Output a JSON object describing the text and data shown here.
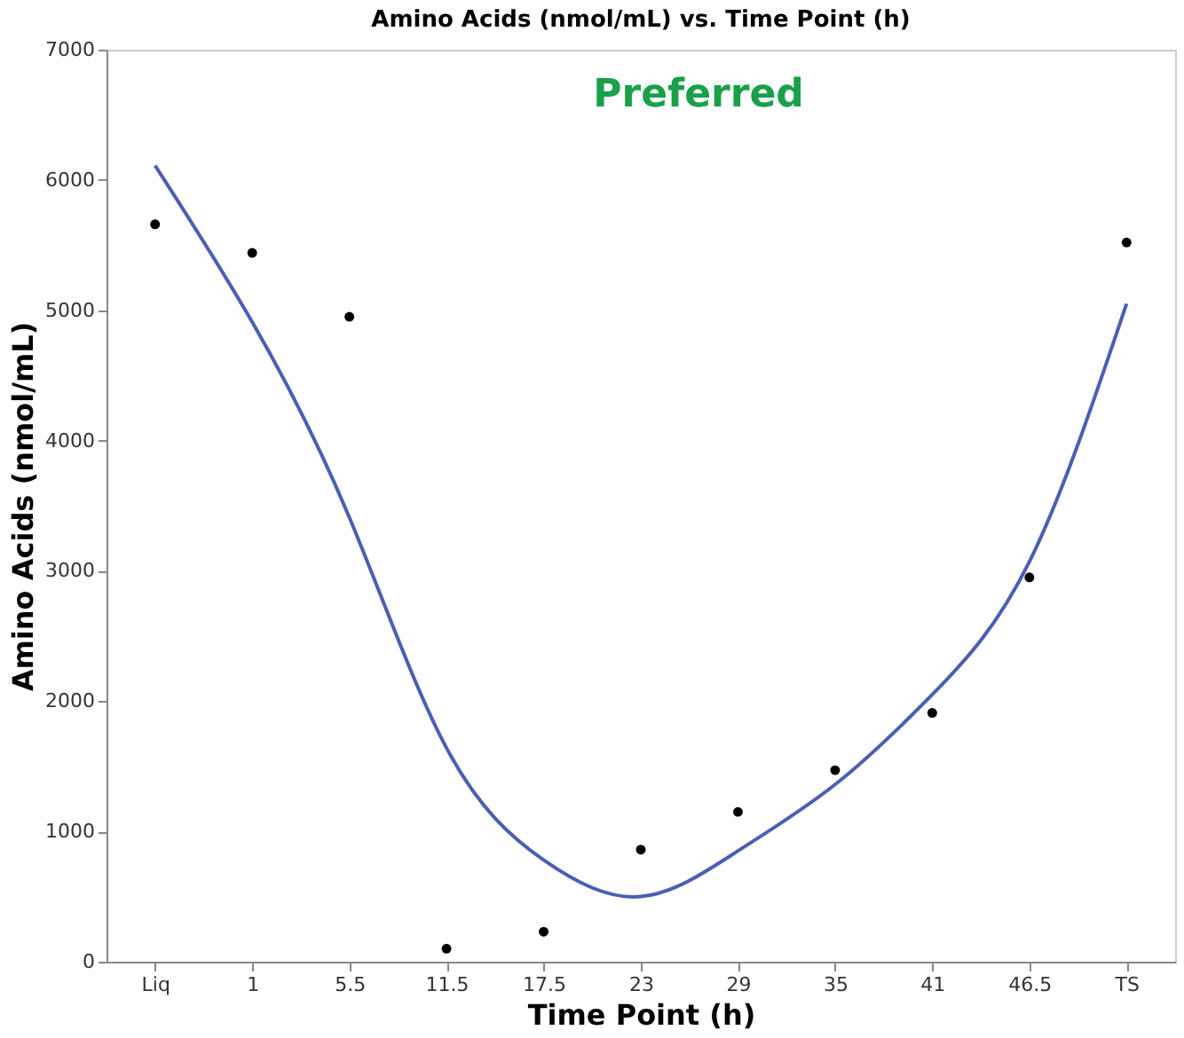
{
  "chart_data": {
    "type": "scatter",
    "title": "Amino Acids (nmol/mL) vs. Time Point (h)",
    "xlabel": "Time Point (h)",
    "ylabel": "Amino Acids (nmol/mL)",
    "categories": [
      "Liq",
      "1",
      "5.5",
      "11.5",
      "17.5",
      "23",
      "29",
      "35",
      "41",
      "46.5",
      "TS"
    ],
    "series": [
      {
        "color": "#000000",
        "marker": "circle",
        "values": [
          5660,
          5440,
          4950,
          100,
          230,
          860,
          1150,
          1470,
          1910,
          2950,
          5520
        ]
      },
      {
        "type": "line",
        "color": "#4a5fb4",
        "values": [
          6110,
          4910,
          3410,
          1640,
          780,
          500,
          850,
          1360,
          2050,
          3070,
          5050
        ]
      }
    ],
    "ylim": [
      0,
      7000
    ],
    "yticks": [
      0,
      1000,
      2000,
      3000,
      4000,
      5000,
      6000,
      7000
    ],
    "annotations": [
      "Preferred"
    ],
    "grid": false,
    "line_style": "solid"
  }
}
